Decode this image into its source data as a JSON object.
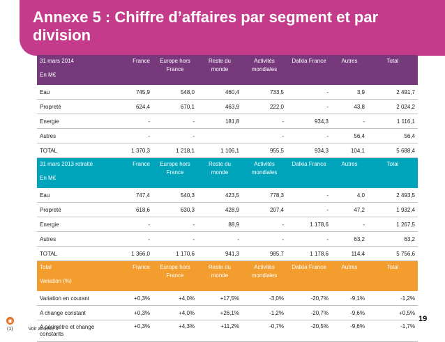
{
  "title": "Annexe 5 : Chiffre d’affaires par segment et par division",
  "columns": [
    "France",
    "Europe hors France",
    "Reste du monde",
    "Activités mondiales",
    "Dalkia France",
    "Autres",
    "Total"
  ],
  "sections": [
    {
      "label": "31 mars 2014",
      "unit": "En M€",
      "rows": [
        {
          "label": "Eau",
          "values": [
            "745,9",
            "548,0",
            "460,4",
            "733,5",
            "-",
            "3,9",
            "2 491,7"
          ]
        },
        {
          "label": "Propreté",
          "values": [
            "624,4",
            "670,1",
            "463,9",
            "222,0",
            "-",
            "43,8",
            "2 024,2"
          ]
        },
        {
          "label": "Energie",
          "values": [
            "-",
            "-",
            "181,8",
            "-",
            "934,3",
            "-",
            "1 116,1"
          ]
        },
        {
          "label": "Autres",
          "values": [
            "-",
            "-",
            "",
            "-",
            "-",
            "56,4",
            "56,4"
          ]
        },
        {
          "label": "TOTAL",
          "values": [
            "1 370,3",
            "1 218,1",
            "1 106,1",
            "955,5",
            "934,3",
            "104,1",
            "5 688,4"
          ]
        }
      ]
    },
    {
      "label": "31 mars 2013 retraité",
      "unit": "En M€",
      "rows": [
        {
          "label": "Eau",
          "values": [
            "747,4",
            "540,3",
            "423,5",
            "778,3",
            "-",
            "4,0",
            "2 493,5"
          ]
        },
        {
          "label": "Propreté",
          "values": [
            "618,6",
            "630,3",
            "428,9",
            "207,4",
            "-",
            "47,2",
            "1 932,4"
          ]
        },
        {
          "label": "Energie",
          "values": [
            "-",
            "-",
            "88,9",
            "-",
            "1 178,6",
            "-",
            "1 267,5"
          ]
        },
        {
          "label": "Autres",
          "values": [
            "-",
            "-",
            "-",
            "-",
            "-",
            "63,2",
            "63,2"
          ]
        },
        {
          "label": "TOTAL",
          "values": [
            "1 366,0",
            "1 170,6",
            "941,3",
            "985,7",
            "1 178,6",
            "114,4",
            "5 756,6"
          ]
        }
      ]
    },
    {
      "label": "Total",
      "unit": "Variation (%)",
      "rows": [
        {
          "label": "Variation en courant",
          "values": [
            "+0,3%",
            "+4,0%",
            "+17,5%",
            "-3,0%",
            "-20,7%",
            "-9,1%",
            "-1,2%"
          ]
        },
        {
          "label": "A change constant",
          "values": [
            "+0,3%",
            "+4,0%",
            "+26,1%",
            "-1,2%",
            "-20,7%",
            "-9,6%",
            "+0,5%"
          ]
        },
        {
          "label": "A périmètre et change constants",
          "values": [
            "+0,3%",
            "+4,3%",
            "+11,2%",
            "-0,7%",
            "-20,5%",
            "-9,6%",
            "-1,7%"
          ]
        }
      ]
    }
  ],
  "page_number": "19",
  "footnote": {
    "marker": "(1)",
    "text": "Voir annexe 3"
  }
}
